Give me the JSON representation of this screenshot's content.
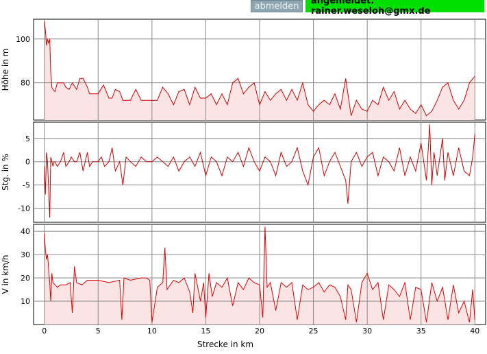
{
  "header": {
    "logout_label": "abmelden",
    "login_status": "angemeldet: rainer.weseloh@gmx.de",
    "logout_color": "#8ea6b0",
    "status_color": "#00e000"
  },
  "chart_data": [
    {
      "type": "area",
      "ylabel": "Höhe in m",
      "xlim": [
        -1,
        41
      ],
      "ylim": [
        63,
        109
      ],
      "yticks": [
        80,
        100
      ],
      "line_color": "#cc0000",
      "fill_color": "#fde4e4",
      "x": [
        0,
        0.1,
        0.2,
        0.3,
        0.4,
        0.5,
        0.6,
        0.7,
        0.8,
        1,
        1.2,
        1.5,
        1.8,
        2,
        2.3,
        2.6,
        3,
        3.3,
        3.6,
        3.8,
        4,
        4.2,
        4.5,
        5,
        5.5,
        6,
        6.3,
        6.6,
        7,
        7.3,
        7.6,
        8,
        8.5,
        9,
        9.5,
        10,
        10.5,
        11,
        11.5,
        12,
        12.5,
        13,
        13.5,
        14,
        14.5,
        15,
        15.5,
        16,
        16.5,
        17,
        17.5,
        18,
        18.5,
        19,
        19.5,
        20,
        20.5,
        21,
        21.5,
        22,
        22.5,
        23,
        23.5,
        24,
        24.5,
        25,
        25.5,
        26,
        26.5,
        27,
        27.5,
        28,
        28.5,
        29,
        29.5,
        30,
        30.5,
        31,
        31.5,
        32,
        32.5,
        33,
        33.5,
        34,
        34.5,
        35,
        35.5,
        36,
        36.5,
        37,
        37.5,
        38,
        38.5,
        39,
        39.5,
        40
      ],
      "y": [
        108,
        104,
        97,
        100,
        98,
        100,
        85,
        78,
        77,
        76,
        80,
        80,
        80,
        78,
        77,
        80,
        77,
        82,
        82,
        80,
        78,
        75,
        75,
        75,
        79,
        73,
        73,
        77,
        76,
        72,
        72,
        72,
        77,
        72,
        72,
        72,
        72,
        78,
        75,
        70,
        76,
        77,
        70,
        78,
        73,
        73,
        75,
        70,
        75,
        70,
        80,
        82,
        75,
        78,
        80,
        70,
        76,
        72,
        75,
        77,
        72,
        77,
        72,
        80,
        70,
        67,
        70,
        72,
        70,
        75,
        68,
        82,
        65,
        72,
        68,
        67,
        72,
        70,
        78,
        72,
        76,
        68,
        72,
        68,
        66,
        70,
        65,
        67,
        72,
        78,
        80,
        72,
        68,
        72,
        80,
        83
      ]
    },
    {
      "type": "line",
      "ylabel": "Stg. in %",
      "xlim": [
        -1,
        41
      ],
      "ylim": [
        -13,
        8.5
      ],
      "yticks": [
        -10,
        -5,
        0,
        5
      ],
      "line_color": "#cc0000",
      "x": [
        0,
        0.1,
        0.2,
        0.3,
        0.4,
        0.5,
        0.6,
        0.7,
        0.8,
        0.9,
        1,
        1.2,
        1.5,
        1.8,
        2,
        2.3,
        2.5,
        2.8,
        3,
        3.3,
        3.6,
        3.8,
        4,
        4.2,
        4.5,
        5,
        5.3,
        5.6,
        6,
        6.3,
        6.6,
        7,
        7.3,
        7.6,
        8,
        8.5,
        9,
        9.5,
        10,
        10.5,
        11,
        11.5,
        12,
        12.5,
        13,
        13.5,
        14,
        14.5,
        15,
        15.5,
        16,
        16.5,
        17,
        17.5,
        18,
        18.5,
        19,
        19.5,
        20,
        20.5,
        21,
        21.5,
        22,
        22.5,
        23,
        23.5,
        24,
        24.5,
        25,
        25.5,
        26,
        26.5,
        27,
        27.5,
        28,
        28.2,
        28.5,
        29,
        29.5,
        30,
        30.5,
        31,
        31.5,
        32,
        32.5,
        33,
        33.5,
        34,
        34.5,
        35,
        35.5,
        35.8,
        36,
        36.2,
        36.5,
        37,
        37.2,
        37.5,
        38,
        38.5,
        39,
        39.5,
        39.8,
        40
      ],
      "y": [
        -1,
        -7,
        2,
        0,
        -6,
        -12,
        1,
        0,
        -1,
        0,
        0,
        -1,
        0,
        2,
        -1,
        0,
        1,
        0,
        0,
        2,
        -2,
        0,
        2,
        -1,
        0,
        0,
        1,
        -1,
        0,
        3,
        -2,
        0,
        -5,
        1,
        0,
        -1,
        1,
        0,
        0,
        1,
        0,
        -1,
        1,
        -2,
        0,
        1,
        -1,
        2,
        -3,
        1,
        0,
        -3,
        1,
        0,
        2,
        -1,
        3,
        0,
        -2,
        1,
        0,
        -3,
        2,
        -1,
        0,
        3,
        -2,
        -5,
        1,
        3,
        -3,
        0,
        2,
        -1,
        -4,
        -9,
        0,
        2,
        -1,
        1,
        2,
        -3,
        1,
        0,
        -2,
        3,
        -3,
        1,
        -2,
        4,
        -4,
        8,
        -5,
        2,
        -3,
        5,
        -4,
        2,
        -3,
        3,
        -2,
        -3,
        1,
        6
      ]
    },
    {
      "type": "line",
      "ylabel": "V in km/h",
      "xlabel": "Strecke in km",
      "xlim": [
        -1,
        41
      ],
      "ylim": [
        0,
        43
      ],
      "yticks": [
        10,
        20,
        30,
        40
      ],
      "xticks": [
        0,
        5,
        10,
        15,
        20,
        25,
        30,
        35,
        40
      ],
      "line_color": "#dd0000",
      "fill_color": "#fde4e4",
      "x": [
        0,
        0.1,
        0.2,
        0.3,
        0.5,
        0.6,
        0.7,
        0.8,
        1,
        1.2,
        1.5,
        2,
        2.4,
        2.6,
        2.8,
        3,
        3.5,
        4,
        5,
        6,
        7,
        7.2,
        7.4,
        8,
        9,
        9.5,
        9.8,
        10,
        10.5,
        11,
        11.2,
        11.4,
        12,
        12.5,
        13,
        13.5,
        13.8,
        14,
        14.5,
        14.8,
        15,
        15.3,
        15.6,
        16,
        16.5,
        17,
        17.5,
        18,
        18.5,
        19,
        19.5,
        20,
        20.3,
        20.5,
        20.7,
        21,
        21.5,
        22,
        22.5,
        23,
        23.5,
        24,
        24.5,
        25,
        25.5,
        26,
        26.5,
        27,
        27.5,
        28,
        28.2,
        28.5,
        29,
        29.5,
        30,
        30.5,
        31,
        31.5,
        32,
        32.5,
        33,
        33.5,
        34,
        34.5,
        35,
        35.5,
        36,
        36.5,
        37,
        37.5,
        38,
        38.5,
        39,
        39.5,
        39.8,
        40
      ],
      "y": [
        39,
        32,
        28,
        30,
        18,
        10,
        22,
        18,
        17,
        16,
        17,
        17,
        18,
        5,
        25,
        18,
        17,
        19,
        19,
        18,
        19,
        2,
        20,
        19,
        20,
        20,
        19,
        1,
        16,
        18,
        33,
        15,
        19,
        18,
        20,
        14,
        5,
        22,
        10,
        18,
        3,
        22,
        12,
        18,
        16,
        20,
        8,
        18,
        15,
        20,
        18,
        17,
        3,
        42,
        16,
        18,
        6,
        18,
        16,
        18,
        2,
        17,
        15,
        16,
        18,
        14,
        17,
        16,
        12,
        2,
        17,
        15,
        1,
        18,
        22,
        15,
        18,
        2,
        17,
        15,
        12,
        18,
        2,
        16,
        15,
        1,
        18,
        10,
        16,
        2,
        17,
        5,
        10,
        1,
        15,
        2
      ]
    }
  ]
}
